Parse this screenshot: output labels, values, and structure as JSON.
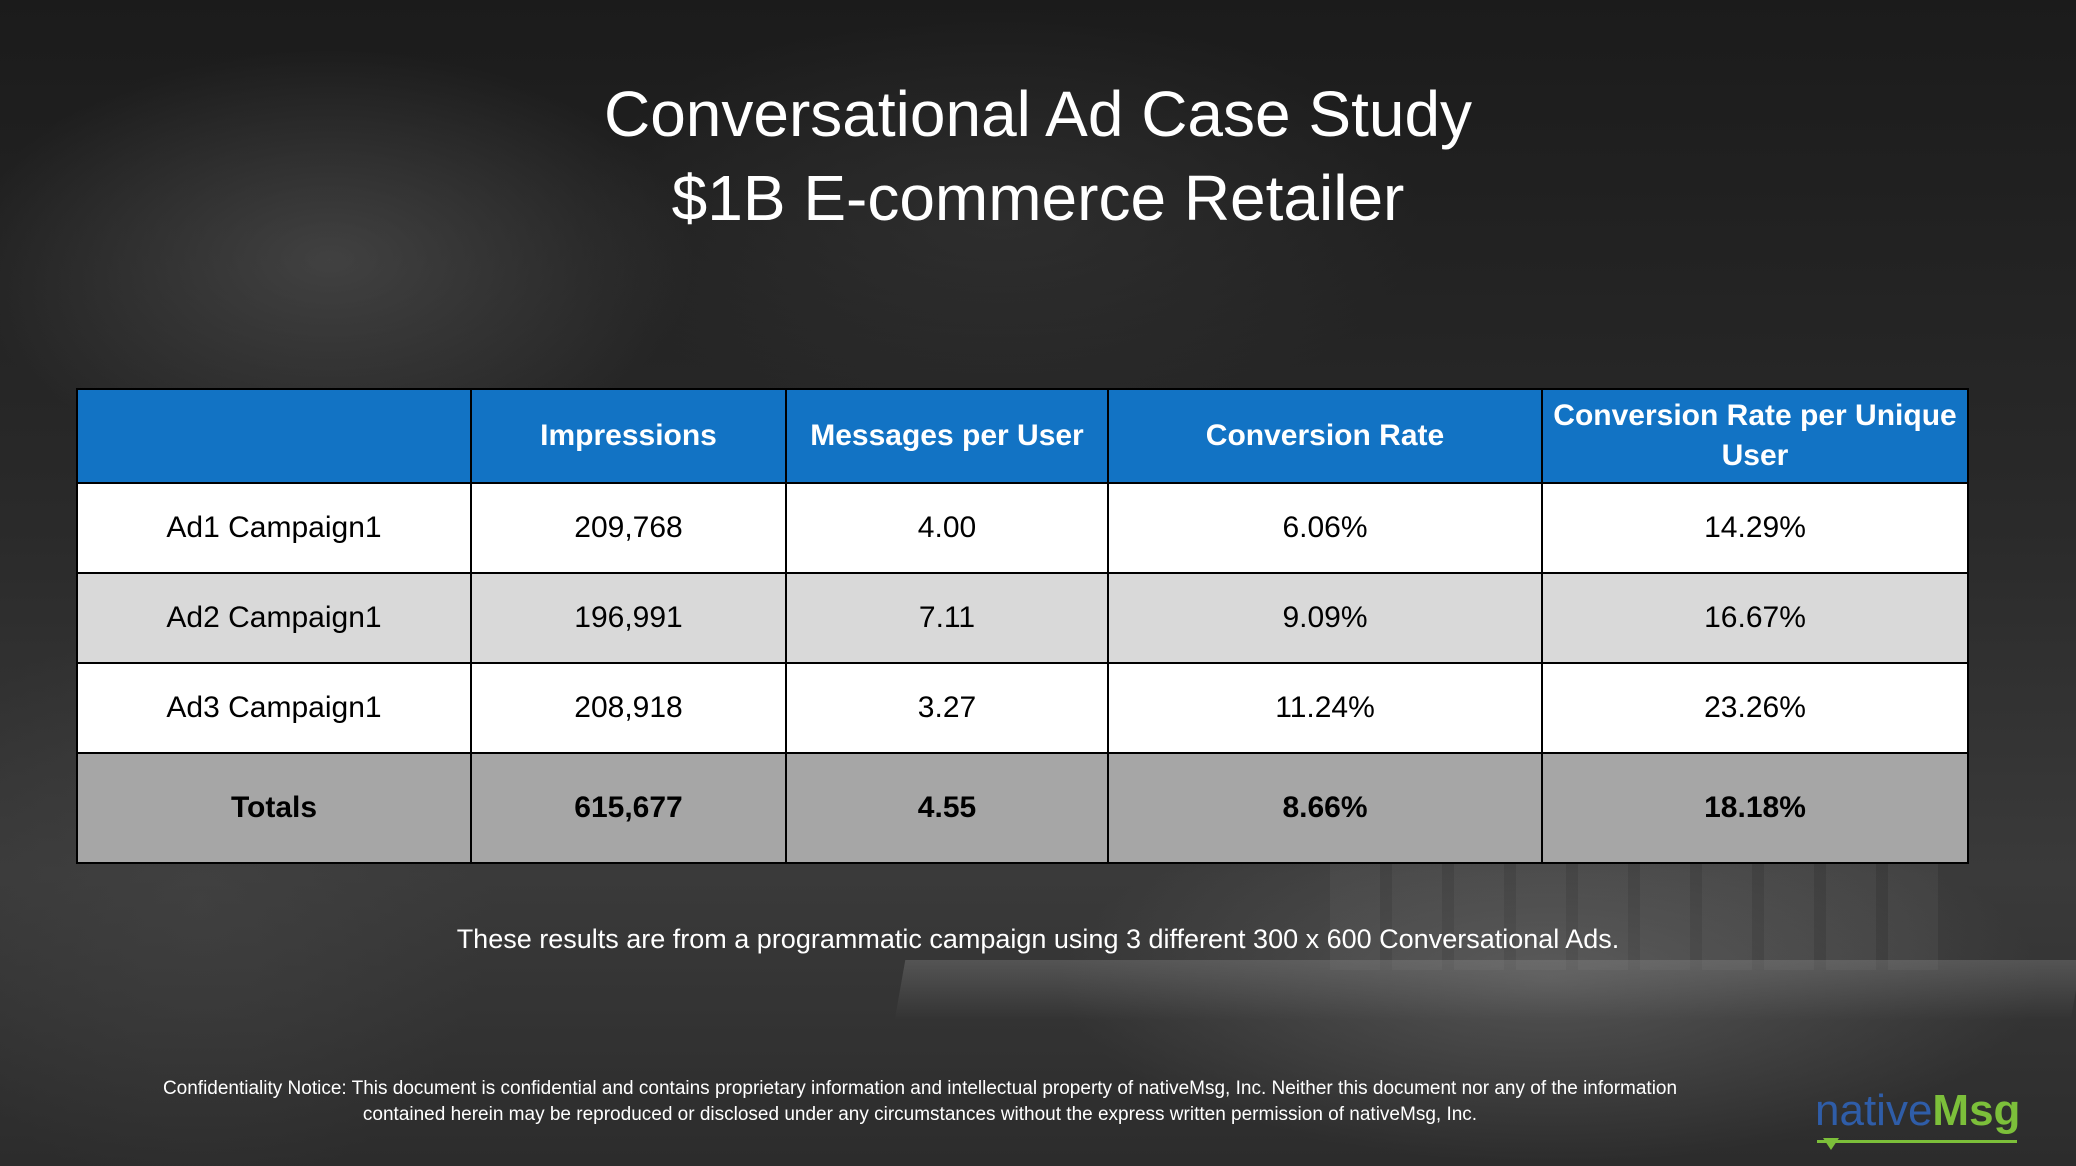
{
  "title": {
    "line1": "Conversational Ad Case Study",
    "line2": "$1B E-commerce Retailer"
  },
  "table": {
    "headers": [
      "",
      "Impressions",
      "Messages per User",
      "Conversion Rate",
      "Conversion Rate per Unique User"
    ],
    "rows": [
      {
        "name": "Ad1 Campaign1",
        "impressions": "209,768",
        "messages": "4.00",
        "conversion": "6.06%",
        "conversion_unique": "14.29%"
      },
      {
        "name": "Ad2 Campaign1",
        "impressions": "196,991",
        "messages": "7.11",
        "conversion": "9.09%",
        "conversion_unique": "16.67%"
      },
      {
        "name": "Ad3 Campaign1",
        "impressions": "208,918",
        "messages": "3.27",
        "conversion": "11.24%",
        "conversion_unique": "23.26%"
      }
    ],
    "totals": {
      "name": "Totals",
      "impressions": "615,677",
      "messages": "4.55",
      "conversion": "8.66%",
      "conversion_unique": "18.18%"
    }
  },
  "note": "These results are from a programmatic campaign using 3 different 300 x 600 Conversational Ads.",
  "confidential": {
    "line1": "Confidentiality Notice: This document is confidential and contains proprietary information and intellectual property of nativeMsg, Inc. Neither this document nor any of the information",
    "line2": "contained herein may be reproduced or disclosed under any circumstances without the express written permission of nativeMsg, Inc."
  },
  "logo": {
    "part1": "native",
    "part2": "Msg"
  },
  "colors": {
    "header_blue": "#1273c4",
    "row_grey": "#d9d9d9",
    "totals_grey": "#a6a6a6",
    "logo_blue": "#2f5da8",
    "logo_green": "#7cbf3a"
  }
}
